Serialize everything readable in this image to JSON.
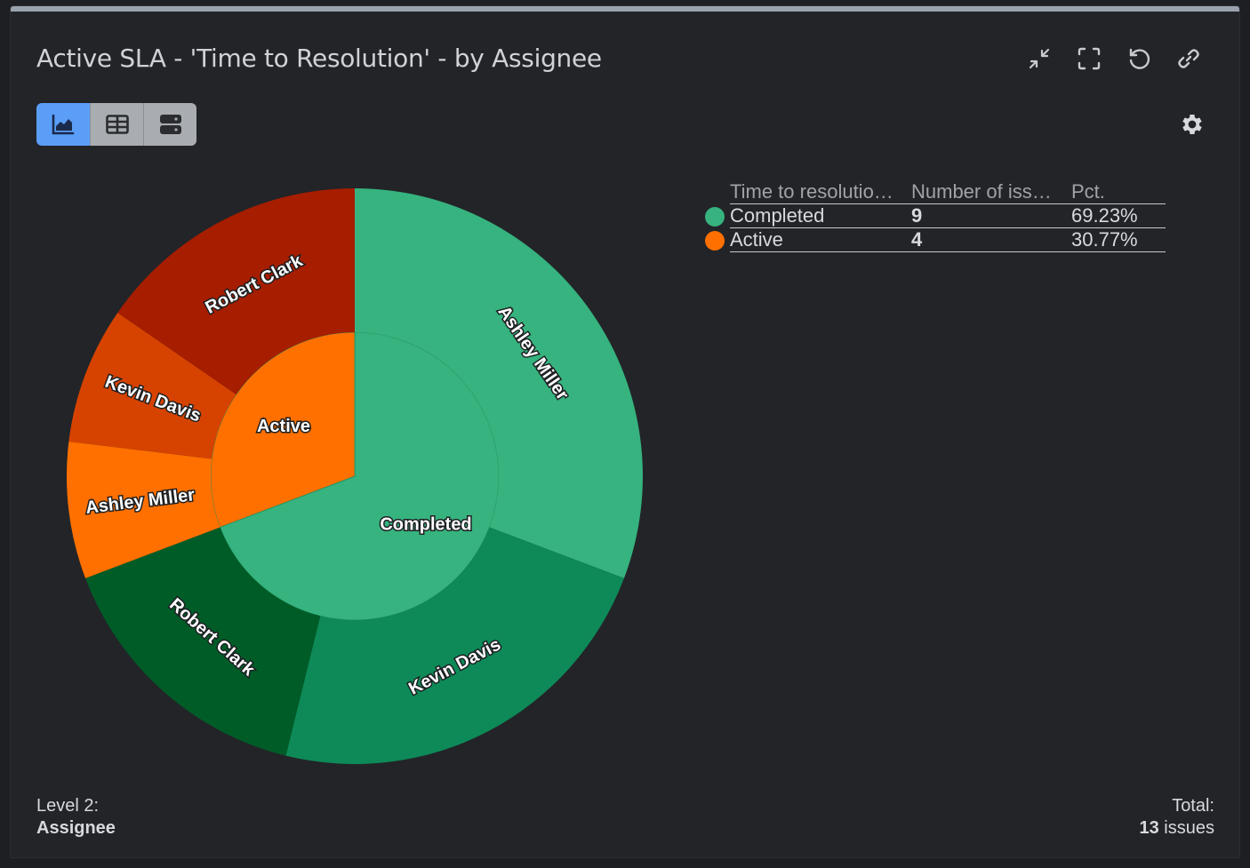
{
  "header": {
    "title": "Active SLA - 'Time to Resolution' - by Assignee"
  },
  "toolbar": {
    "icons": [
      "collapse-icon",
      "fullscreen-icon",
      "refresh-icon",
      "link-icon"
    ],
    "view_modes": [
      "chart-view",
      "table-view",
      "list-view"
    ],
    "active_view": "chart-view"
  },
  "legend": {
    "headers": [
      "Time to resolutio…",
      "Number of iss…",
      "Pct."
    ],
    "rows": [
      {
        "label": "Completed",
        "count": "9",
        "pct": "69.23%",
        "color": "#36b37e"
      },
      {
        "label": "Active",
        "count": "4",
        "pct": "30.77%",
        "color": "#ff7000"
      }
    ]
  },
  "footer": {
    "level_label": "Level 2:",
    "level_value": "Assignee",
    "total_label": "Total:",
    "total_count": "13",
    "total_unit": " issues"
  },
  "chart_data": {
    "type": "sunburst",
    "inner": [
      {
        "name": "Completed",
        "value": 9,
        "color": "#36b37e"
      },
      {
        "name": "Active",
        "value": 4,
        "color": "#ff7000"
      }
    ],
    "outer": [
      {
        "name": "Ashley Miller",
        "parent": "Completed",
        "value": 4,
        "color": "#36b37e"
      },
      {
        "name": "Kevin Davis",
        "parent": "Completed",
        "value": 3,
        "color": "#0d8a57"
      },
      {
        "name": "Robert Clark",
        "parent": "Completed",
        "value": 2,
        "color": "#005c27"
      },
      {
        "name": "Ashley Miller",
        "parent": "Active",
        "value": 1,
        "color": "#ff7000"
      },
      {
        "name": "Kevin Davis",
        "parent": "Active",
        "value": 1,
        "color": "#d64300"
      },
      {
        "name": "Robert Clark",
        "parent": "Active",
        "value": 2,
        "color": "#a61d00"
      }
    ]
  }
}
